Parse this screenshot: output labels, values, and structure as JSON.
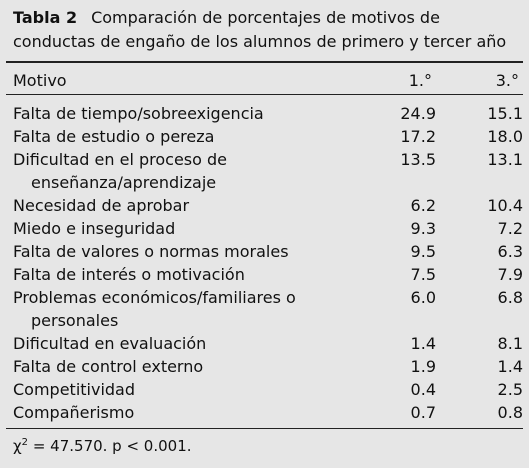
{
  "caption": {
    "label": "Tabla 2",
    "text": "Comparación de porcentajes de motivos de conductas de engaño de los alumnos de primero y tercer año"
  },
  "table": {
    "header": [
      "Motivo",
      "1.°",
      "3.°"
    ],
    "rows": [
      [
        "Falta de tiempo/sobreexigencia",
        "24.9",
        "15.1"
      ],
      [
        "Falta de estudio o pereza",
        "17.2",
        "18.0"
      ],
      [
        [
          "Dificultad en el proceso de",
          "enseñanza/aprendizaje"
        ],
        "13.5",
        "13.1"
      ],
      [
        "Necesidad de aprobar",
        "6.2",
        "10.4"
      ],
      [
        "Miedo e inseguridad",
        "9.3",
        "7.2"
      ],
      [
        "Falta de valores o normas morales",
        "9.5",
        "6.3"
      ],
      [
        "Falta de interés o motivación",
        "7.5",
        "7.9"
      ],
      [
        [
          "Problemas económicos/familiares o",
          "personales"
        ],
        "6.0",
        "6.8"
      ],
      [
        "Dificultad en evaluación",
        "1.4",
        "8.1"
      ],
      [
        "Falta de control externo",
        "1.9",
        "1.4"
      ],
      [
        "Competitividad",
        "0.4",
        "2.5"
      ],
      [
        "Compañerismo",
        "0.7",
        "0.8"
      ]
    ]
  },
  "footnote": {
    "symbol": "χ",
    "superscript": "2",
    "text": "= 47.570. p < 0.001."
  }
}
